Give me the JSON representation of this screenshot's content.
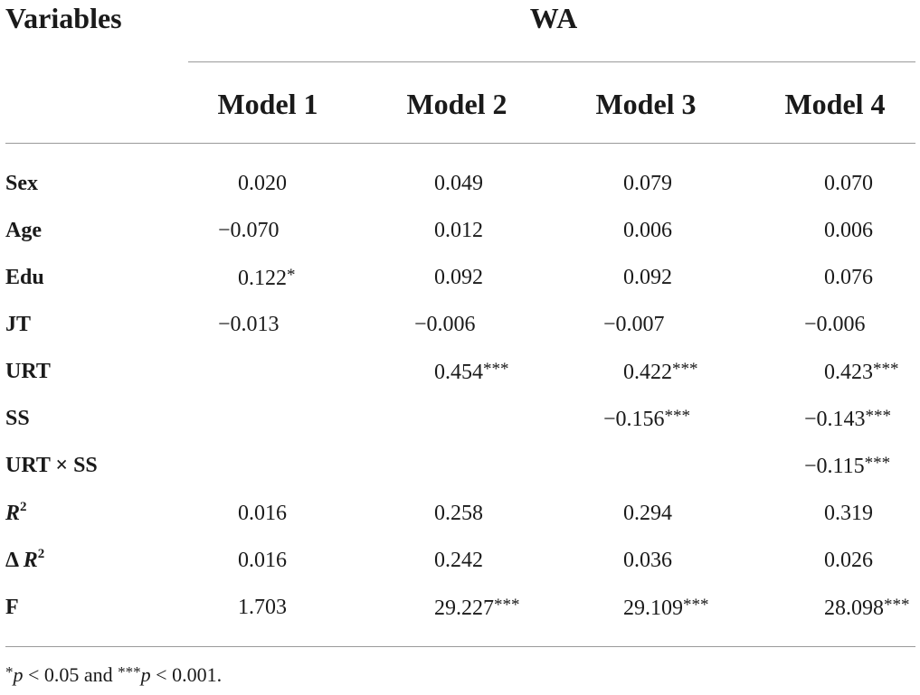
{
  "header": {
    "variables_label": "Variables",
    "group_label": "WA",
    "models": [
      "Model 1",
      "Model 2",
      "Model 3",
      "Model 4"
    ]
  },
  "rows": [
    {
      "label": "Sex",
      "cells": [
        {
          "v": "0.020",
          "s": ""
        },
        {
          "v": "0.049",
          "s": ""
        },
        {
          "v": "0.079",
          "s": ""
        },
        {
          "v": "0.070",
          "s": ""
        }
      ]
    },
    {
      "label": "Age",
      "cells": [
        {
          "v": "−0.070",
          "s": ""
        },
        {
          "v": "0.012",
          "s": ""
        },
        {
          "v": "0.006",
          "s": ""
        },
        {
          "v": "0.006",
          "s": ""
        }
      ]
    },
    {
      "label": "Edu",
      "cells": [
        {
          "v": "0.122",
          "s": "*"
        },
        {
          "v": "0.092",
          "s": ""
        },
        {
          "v": "0.092",
          "s": ""
        },
        {
          "v": "0.076",
          "s": ""
        }
      ]
    },
    {
      "label": "JT",
      "cells": [
        {
          "v": "−0.013",
          "s": ""
        },
        {
          "v": "−0.006",
          "s": ""
        },
        {
          "v": "−0.007",
          "s": ""
        },
        {
          "v": "−0.006",
          "s": ""
        }
      ]
    },
    {
      "label": "URT",
      "cells": [
        {
          "v": "",
          "s": ""
        },
        {
          "v": "0.454",
          "s": "***"
        },
        {
          "v": "0.422",
          "s": "***"
        },
        {
          "v": "0.423",
          "s": "***"
        }
      ]
    },
    {
      "label": "SS",
      "cells": [
        {
          "v": "",
          "s": ""
        },
        {
          "v": "",
          "s": ""
        },
        {
          "v": "−0.156",
          "s": "***"
        },
        {
          "v": "−0.143",
          "s": "***"
        }
      ]
    },
    {
      "label": "URT × SS",
      "cells": [
        {
          "v": "",
          "s": ""
        },
        {
          "v": "",
          "s": ""
        },
        {
          "v": "",
          "s": ""
        },
        {
          "v": "−0.115",
          "s": "***"
        }
      ]
    },
    {
      "label": "<i>R</i><sup>2</sup>",
      "cells": [
        {
          "v": "0.016",
          "s": ""
        },
        {
          "v": "0.258",
          "s": ""
        },
        {
          "v": "0.294",
          "s": ""
        },
        {
          "v": "0.319",
          "s": ""
        }
      ]
    },
    {
      "label": "Δ <i>R</i><sup>2</sup>",
      "cells": [
        {
          "v": "0.016",
          "s": ""
        },
        {
          "v": "0.242",
          "s": ""
        },
        {
          "v": "0.036",
          "s": ""
        },
        {
          "v": "0.026",
          "s": ""
        }
      ]
    },
    {
      "label": "F",
      "cells": [
        {
          "v": "1.703",
          "s": ""
        },
        {
          "v": "29.227",
          "s": "***"
        },
        {
          "v": "29.109",
          "s": "***"
        },
        {
          "v": "28.098",
          "s": "***"
        }
      ]
    }
  ],
  "footnote": {
    "star1": "*",
    "p1": "p",
    "cond1": " < 0.05 and ",
    "star3": "***",
    "p3": "p",
    "cond3": " < 0.001."
  }
}
